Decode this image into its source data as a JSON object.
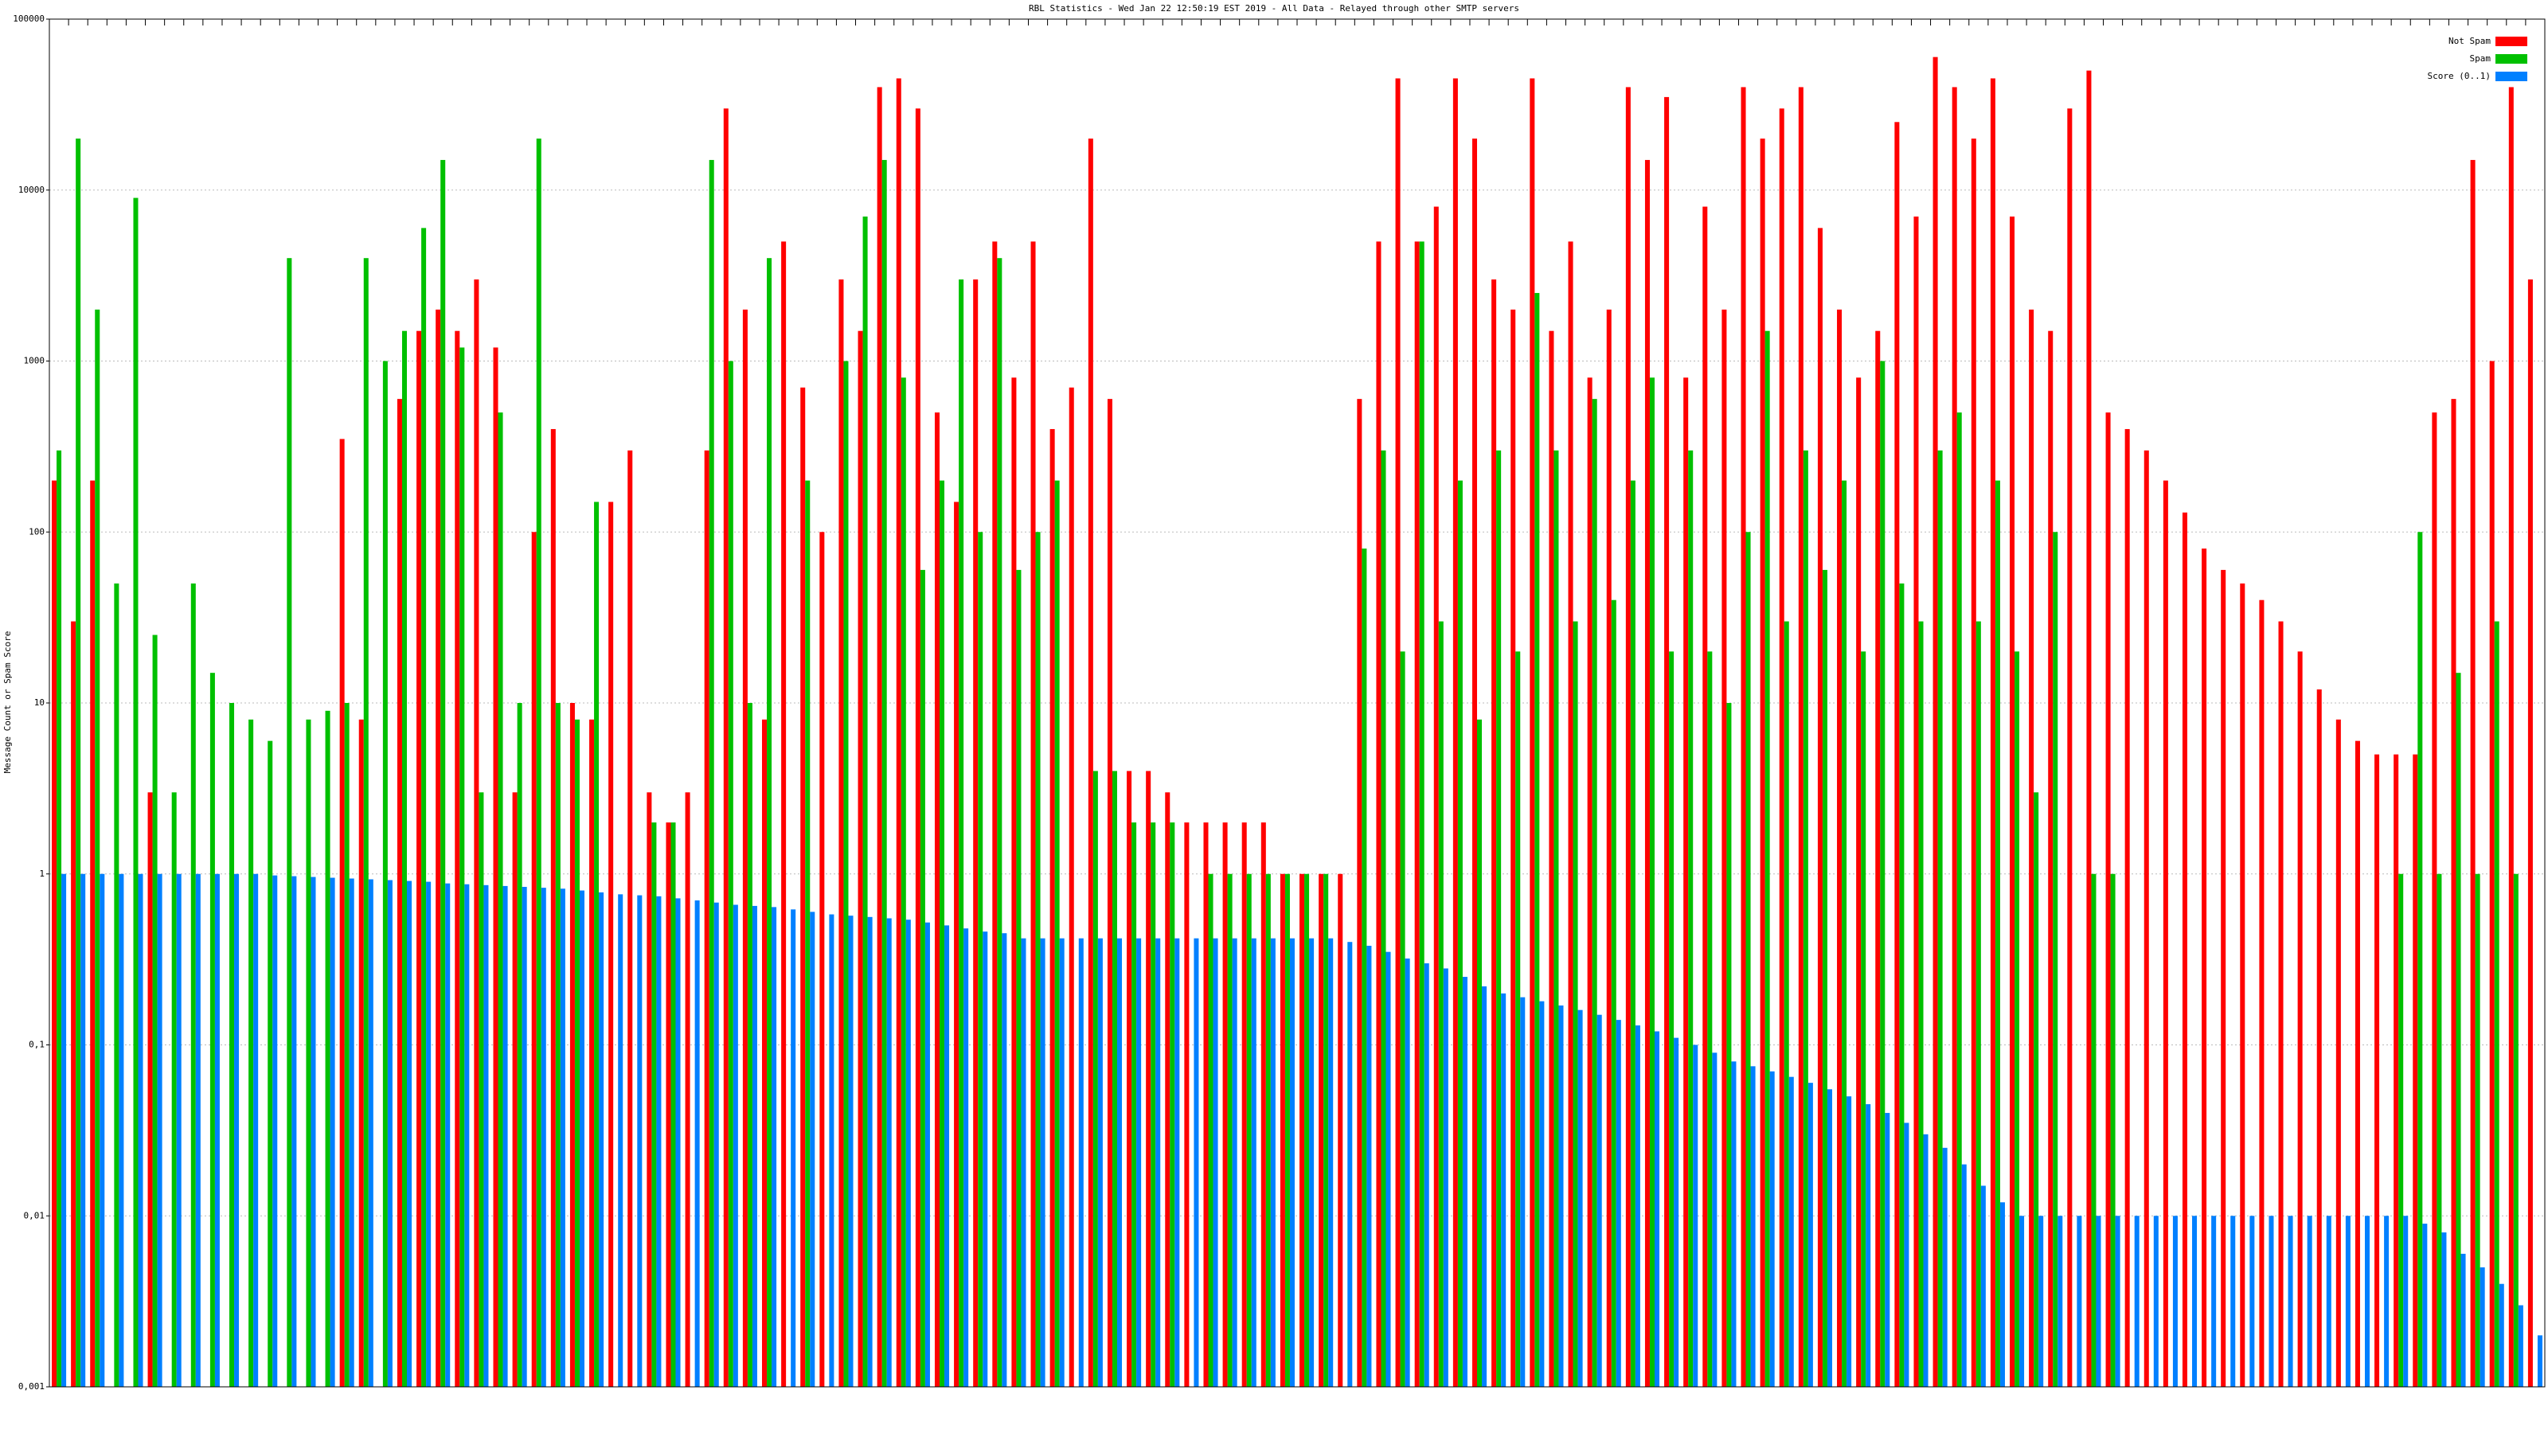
{
  "chart_data": {
    "type": "bar",
    "title": "RBL Statistics - Wed Jan 22 12:50:19 EST 2019 - All Data - Relayed through other SMTP servers",
    "y_label": "Message Count or Spam Score",
    "log_scale": true,
    "grid": true,
    "legend": "top-right",
    "ylim": [
      0.001,
      100000
    ],
    "yticks": [
      {
        "value": 0.001,
        "label": "0,001"
      },
      {
        "value": 0.01,
        "label": "0,01"
      },
      {
        "value": 0.1,
        "label": "0,1"
      },
      1,
      10,
      100,
      1000,
      10000,
      100000
    ],
    "series": [
      {
        "name": "Not Spam",
        "color": "#ff0000",
        "values": [
          200,
          30,
          200,
          null,
          null,
          3,
          null,
          null,
          null,
          null,
          null,
          null,
          null,
          null,
          null,
          350,
          8,
          null,
          600,
          1500,
          2000,
          1500,
          3000,
          1200,
          3,
          100,
          400,
          10,
          8,
          150,
          300,
          3,
          2,
          3,
          300,
          30000,
          2000,
          8,
          5000,
          700,
          100,
          3000,
          1500,
          40000,
          45000,
          30000,
          500,
          150,
          3000,
          5000,
          800,
          5000,
          400,
          700,
          20000,
          600,
          4,
          4,
          3,
          2,
          2,
          2,
          2,
          2,
          1,
          1,
          1,
          1,
          600,
          5000,
          45000,
          5000,
          8000,
          45000,
          20000,
          3000,
          2000,
          45000,
          1500,
          5000,
          800,
          2000,
          40000,
          15000,
          35000,
          800,
          8000,
          2000,
          40000,
          20000,
          30000,
          40000,
          6000,
          2000,
          800,
          1500,
          25000,
          7000,
          60000,
          40000,
          20000,
          45000,
          7000,
          2000,
          1500,
          30000,
          50000,
          500,
          400,
          300,
          200,
          130,
          80,
          60,
          50,
          40,
          30,
          20,
          12,
          8,
          6,
          5,
          5,
          5,
          500,
          600,
          15000,
          1000,
          40000,
          3000
        ]
      },
      {
        "name": "Spam",
        "color": "#00c000",
        "values": [
          300,
          20000,
          2000,
          50,
          9000,
          25,
          3,
          50,
          15,
          10,
          8,
          6,
          4000,
          8,
          9,
          10,
          4000,
          1000,
          1500,
          6000,
          15000,
          1200,
          3,
          500,
          10,
          20000,
          10,
          8,
          150,
          null,
          null,
          2,
          2,
          null,
          15000,
          1000,
          10,
          4000,
          null,
          200,
          null,
          1000,
          7000,
          15000,
          800,
          60,
          200,
          3000,
          100,
          4000,
          60,
          100,
          200,
          null,
          4,
          4,
          2,
          2,
          2,
          null,
          1,
          1,
          1,
          1,
          1,
          1,
          1,
          null,
          80,
          300,
          20,
          5000,
          30,
          200,
          8,
          300,
          20,
          2500,
          300,
          30,
          600,
          40,
          200,
          800,
          20,
          300,
          20,
          10,
          100,
          1500,
          30,
          300,
          60,
          200,
          20,
          1000,
          50,
          30,
          300,
          500,
          30,
          200,
          20,
          3,
          100,
          null,
          1,
          1,
          null,
          null,
          null,
          null,
          null,
          null,
          null,
          null,
          null,
          null,
          null,
          null,
          null,
          null,
          1,
          100,
          1,
          15,
          1,
          30,
          1,
          null
        ]
      },
      {
        "name": "Score (0..1)",
        "color": "#0080ff",
        "values": [
          1,
          1,
          1,
          1,
          1,
          1,
          1,
          1,
          1,
          1,
          1,
          0.98,
          0.97,
          0.96,
          0.95,
          0.94,
          0.93,
          0.92,
          0.91,
          0.9,
          0.88,
          0.87,
          0.86,
          0.85,
          0.84,
          0.83,
          0.82,
          0.8,
          0.78,
          0.76,
          0.75,
          0.74,
          0.72,
          0.7,
          0.68,
          0.66,
          0.65,
          0.64,
          0.62,
          0.6,
          0.58,
          0.57,
          0.56,
          0.55,
          0.54,
          0.52,
          0.5,
          0.48,
          0.46,
          0.45,
          0.42,
          0.42,
          0.42,
          0.42,
          0.42,
          0.42,
          0.42,
          0.42,
          0.42,
          0.42,
          0.42,
          0.42,
          0.42,
          0.42,
          0.42,
          0.42,
          0.42,
          0.4,
          0.38,
          0.35,
          0.32,
          0.3,
          0.28,
          0.25,
          0.22,
          0.2,
          0.19,
          0.18,
          0.17,
          0.16,
          0.15,
          0.14,
          0.13,
          0.12,
          0.11,
          0.1,
          0.09,
          0.08,
          0.075,
          0.07,
          0.065,
          0.06,
          0.055,
          0.05,
          0.045,
          0.04,
          0.035,
          0.03,
          0.025,
          0.02,
          0.015,
          0.012,
          0.01,
          0.01,
          0.01,
          0.01,
          0.01,
          0.01,
          0.01,
          0.01,
          0.01,
          0.01,
          0.01,
          0.01,
          0.01,
          0.01,
          0.01,
          0.01,
          0.01,
          0.01,
          0.01,
          0.01,
          0.01,
          0.009,
          0.008,
          0.006,
          0.005,
          0.004,
          0.003,
          0.002
        ]
      }
    ]
  }
}
